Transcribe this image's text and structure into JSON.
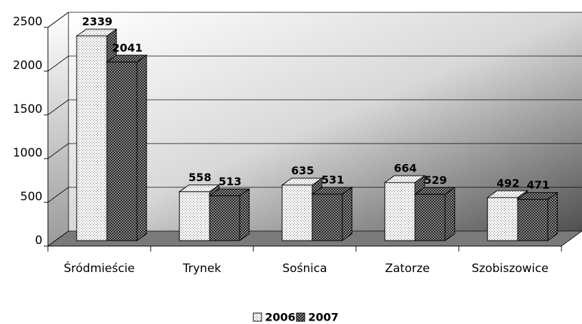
{
  "chart_data": {
    "type": "bar3d",
    "categories": [
      "Śródmieście",
      "Trynek",
      "Sośnica",
      "Zatorze",
      "Szobiszowice"
    ],
    "series": [
      {
        "name": "2006",
        "color": "#ffffff",
        "values": [
          2339,
          558,
          635,
          664,
          492
        ]
      },
      {
        "name": "2007",
        "color": "#8a8a8a",
        "values": [
          2041,
          513,
          531,
          529,
          471
        ]
      }
    ],
    "ylim": [
      0,
      2500
    ],
    "yticks": [
      0,
      500,
      1000,
      1500,
      2000,
      2500
    ],
    "grid": true,
    "legend": "bottom"
  }
}
